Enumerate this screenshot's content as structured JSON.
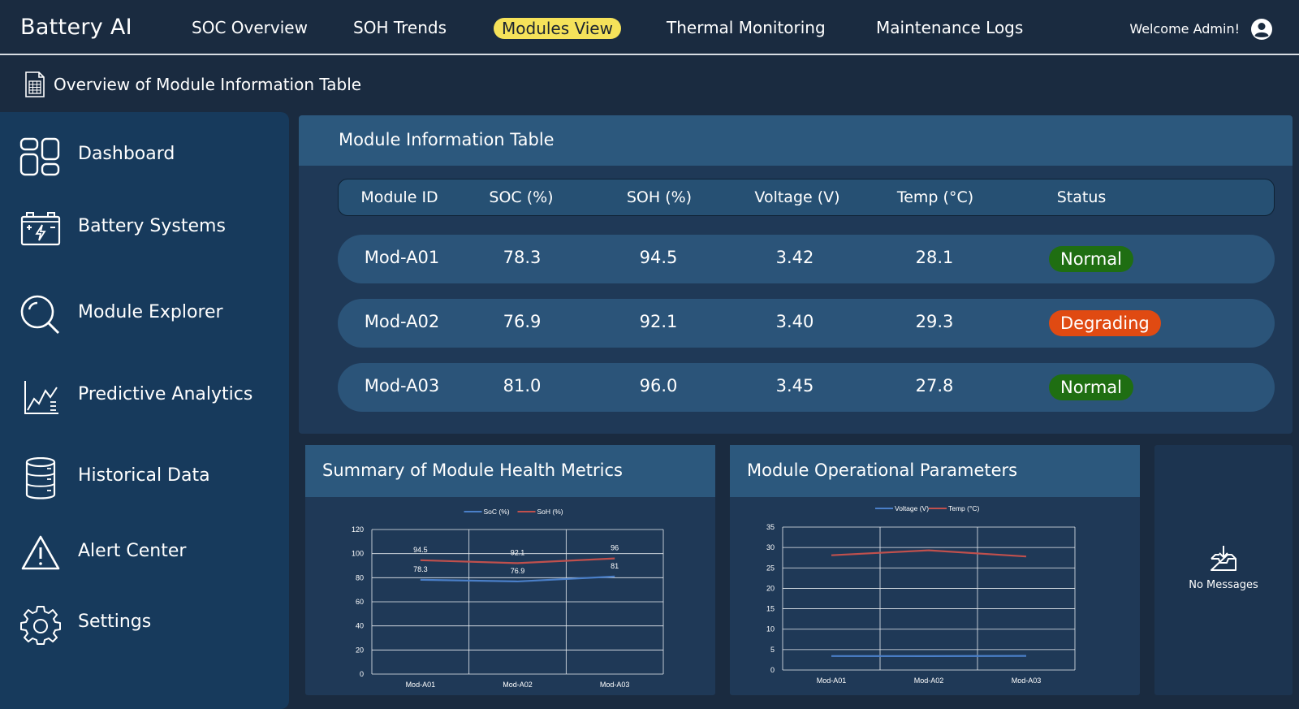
{
  "header": {
    "brand": "Battery AI",
    "nav": [
      {
        "label": "SOC Overview",
        "active": false
      },
      {
        "label": "SOH Trends",
        "active": false
      },
      {
        "label": "Modules View",
        "active": true
      },
      {
        "label": "Thermal Monitoring",
        "active": false
      },
      {
        "label": "Maintenance Logs",
        "active": false
      }
    ],
    "welcome": "Welcome Admin!",
    "avatar_icon": "user-circle-icon"
  },
  "subheader": {
    "title": "Overview of Module Information Table",
    "icon": "spreadsheet-document-icon"
  },
  "sidebar": {
    "items": [
      {
        "label": "Dashboard",
        "icon": "dashboard-grid-icon"
      },
      {
        "label": "Battery Systems",
        "icon": "battery-icon"
      },
      {
        "label": "Module Explorer",
        "icon": "search-icon"
      },
      {
        "label": "Predictive Analytics",
        "icon": "line-chart-icon"
      },
      {
        "label": "Historical Data",
        "icon": "database-icon"
      },
      {
        "label": "Alert Center",
        "icon": "warning-icon"
      },
      {
        "label": "Settings",
        "icon": "gear-icon"
      }
    ]
  },
  "table": {
    "title": "Module Information Table",
    "columns": [
      "Module ID",
      "SOC (%)",
      "SOH (%)",
      "Voltage (V)",
      "Temp (°C)",
      "Status"
    ],
    "rows": [
      {
        "id": "Mod-A01",
        "soc": "78.3",
        "soh": "94.5",
        "voltage": "3.42",
        "temp": "28.1",
        "status": "Normal"
      },
      {
        "id": "Mod-A02",
        "soc": "76.9",
        "soh": "92.1",
        "voltage": "3.40",
        "temp": "29.3",
        "status": "Degrading"
      },
      {
        "id": "Mod-A03",
        "soc": "81.0",
        "soh": "96.0",
        "voltage": "3.45",
        "temp": "27.8",
        "status": "Normal"
      }
    ],
    "status_colors": {
      "Normal": "#1f6e12",
      "Degrading": "#e04a12"
    }
  },
  "charts": {
    "health": {
      "title": "Summary of Module Health Metrics"
    },
    "operational": {
      "title": "Module Operational Parameters"
    }
  },
  "chart_data": [
    {
      "type": "line",
      "categories": [
        "Mod-A01",
        "Mod-A02",
        "Mod-A03"
      ],
      "series": [
        {
          "name": "SoC (%)",
          "values": [
            78.3,
            76.9,
            81
          ],
          "color": "#4a7fc8",
          "labels": [
            "78.3",
            "76.9",
            "81"
          ]
        },
        {
          "name": "SoH (%)",
          "values": [
            94.5,
            92.1,
            96
          ],
          "color": "#c0504d",
          "labels": [
            "94.5",
            "92.1",
            "96"
          ]
        }
      ],
      "ylim": [
        0,
        120
      ],
      "yticks": [
        0,
        20,
        40,
        60,
        80,
        100,
        120
      ],
      "grid": true,
      "legend": "top-center"
    },
    {
      "type": "line",
      "categories": [
        "Mod-A01",
        "Mod-A02",
        "Mod-A03"
      ],
      "series": [
        {
          "name": "Voltage (V)",
          "values": [
            3.42,
            3.4,
            3.45
          ],
          "color": "#4a7fc8"
        },
        {
          "name": "Temp (°C)",
          "values": [
            28.1,
            29.3,
            27.8
          ],
          "color": "#c0504d"
        }
      ],
      "ylim": [
        0,
        35
      ],
      "yticks": [
        0,
        5,
        10,
        15,
        20,
        25,
        30,
        35
      ],
      "grid": true,
      "legend": "top-center"
    }
  ],
  "messages": {
    "text": "No Messages",
    "icon": "inbox-icon"
  }
}
